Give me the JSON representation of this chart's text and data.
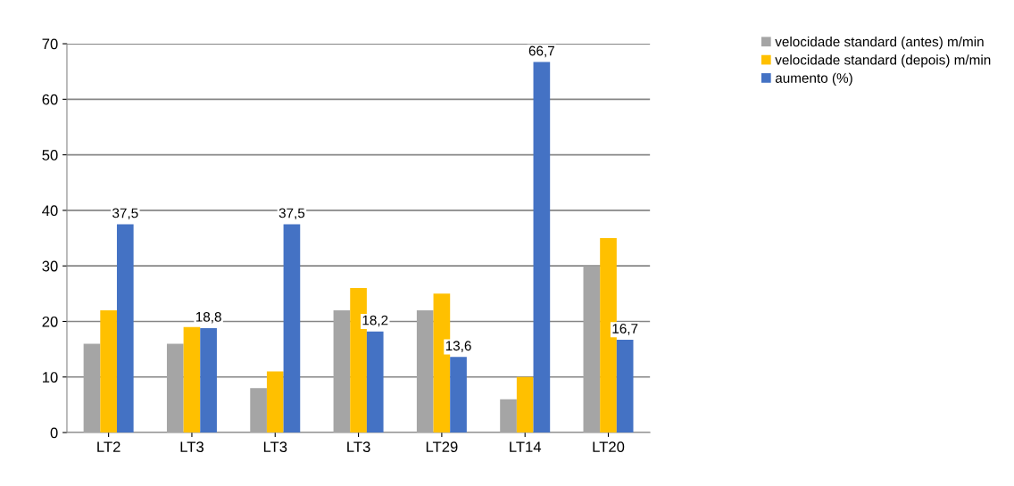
{
  "chart_data": {
    "type": "bar",
    "categories": [
      "LT2",
      "LT3",
      "LT3",
      "LT3",
      "LT29",
      "LT14",
      "LT20"
    ],
    "series": [
      {
        "name": "velocidade standard (antes) m/min",
        "color": "#a5a5a5",
        "values": [
          16,
          16,
          8,
          22,
          22,
          6,
          30
        ]
      },
      {
        "name": "velocidade standard (depois) m/min",
        "color": "#ffc000",
        "values": [
          22,
          19,
          11,
          26,
          25,
          10,
          35
        ]
      },
      {
        "name": "aumento (%)",
        "color": "#4472c4",
        "values": [
          37.5,
          18.8,
          37.5,
          18.2,
          13.6,
          66.7,
          16.7
        ],
        "value_labels": [
          "37,5",
          "18,8",
          "37,5",
          "18,2",
          "13,6",
          "66,7",
          "16,7"
        ]
      }
    ],
    "ylim": [
      0,
      70
    ],
    "yticks": [
      0,
      10,
      20,
      30,
      40,
      50,
      60,
      70
    ],
    "grid": "y",
    "legend": "top right"
  }
}
